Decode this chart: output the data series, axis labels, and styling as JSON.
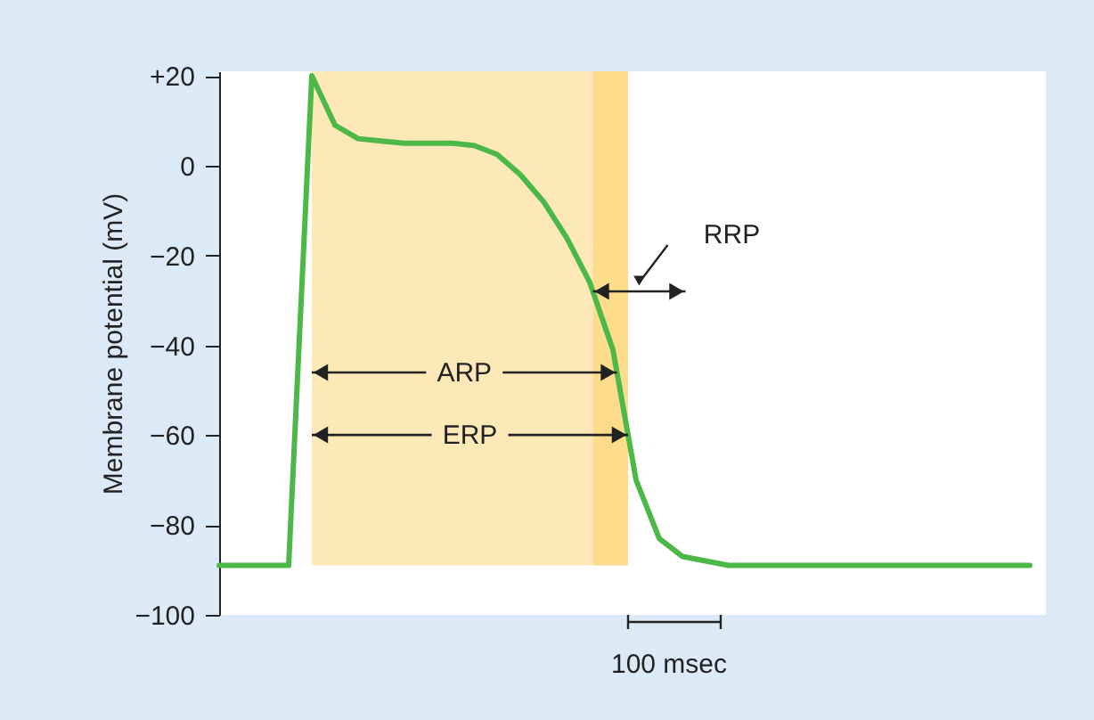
{
  "chart_data": {
    "type": "line",
    "ylabel": "Membrane potential (mV)",
    "xlabel": "100 msec",
    "categories": [
      null,
      null,
      null,
      null,
      null,
      null,
      null,
      null,
      null,
      null,
      null,
      null,
      null,
      null,
      null,
      null,
      null,
      null,
      null,
      null,
      null,
      null,
      null,
      null,
      null,
      null,
      null,
      null,
      null,
      null,
      null,
      null,
      null,
      null,
      null,
      null
    ],
    "series": [
      {
        "color": "#4cb848",
        "values": [
          -89,
          -89,
          -89,
          -89,
          20,
          9,
          6,
          5.5,
          5,
          5,
          5,
          4.5,
          2.5,
          -2,
          -8,
          -16,
          -26,
          -41,
          -70,
          -83,
          -87,
          -88,
          -89,
          -89,
          -89,
          -89,
          -89,
          -89,
          -89,
          -89,
          -89,
          -89,
          -89,
          -89,
          -89,
          -89
        ]
      }
    ],
    "ylim": [
      -100,
      21
    ],
    "yticks": [
      {
        "value": 20,
        "label": "+20"
      },
      {
        "value": 0,
        "label": "0"
      },
      {
        "value": -20,
        "label": "−20"
      },
      {
        "value": -40,
        "label": "−40"
      },
      {
        "value": -60,
        "label": "−60"
      },
      {
        "value": -80,
        "label": "−80"
      },
      {
        "value": -100,
        "label": "−100"
      }
    ],
    "tick_labels": "y",
    "grid": false,
    "marker": "none",
    "line_style": "solid",
    "annotations": [
      "ARP",
      "ERP",
      "RRP"
    ]
  }
}
